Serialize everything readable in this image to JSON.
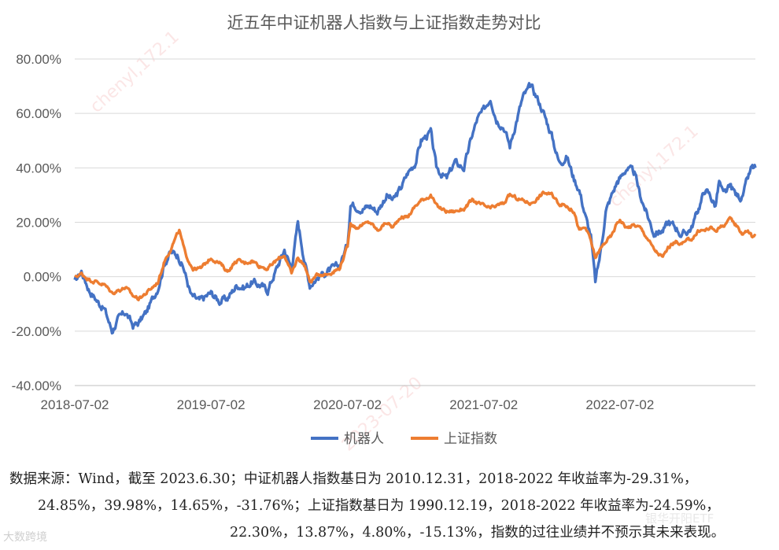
{
  "chart_data": {
    "type": "line",
    "title": "近五年中证机器人指数与上证指数走势对比",
    "xlabel": "",
    "ylabel": "",
    "x_ticks": [
      "2018-07-02",
      "2019-07-02",
      "2020-07-02",
      "2021-07-02",
      "2022-07-02"
    ],
    "x_range": [
      "2018-07-02",
      "2023-06-30"
    ],
    "y_ticks": [
      "80.00%",
      "60.00%",
      "40.00%",
      "20.00%",
      "0.00%",
      "-20.00%",
      "-40.00%"
    ],
    "ylim": [
      -40,
      80
    ],
    "grid": "horizontal",
    "legend_position": "bottom",
    "series": [
      {
        "name": "机器人",
        "color": "#4472C4",
        "points": [
          [
            "2018-07-02",
            -2
          ],
          [
            "2018-07-20",
            2
          ],
          [
            "2018-08-10",
            -5
          ],
          [
            "2018-09-01",
            -9
          ],
          [
            "2018-09-20",
            -12
          ],
          [
            "2018-10-10",
            -20
          ],
          [
            "2018-10-25",
            -16
          ],
          [
            "2018-11-15",
            -13
          ],
          [
            "2018-12-05",
            -18
          ],
          [
            "2018-12-20",
            -17
          ],
          [
            "2019-01-10",
            -13
          ],
          [
            "2019-02-10",
            -4
          ],
          [
            "2019-02-28",
            5
          ],
          [
            "2019-03-15",
            9
          ],
          [
            "2019-04-05",
            8
          ],
          [
            "2019-04-20",
            3
          ],
          [
            "2019-05-10",
            -7
          ],
          [
            "2019-06-01",
            -9
          ],
          [
            "2019-07-02",
            -6
          ],
          [
            "2019-07-25",
            -9
          ],
          [
            "2019-08-15",
            -8
          ],
          [
            "2019-09-10",
            -3
          ],
          [
            "2019-09-30",
            -4
          ],
          [
            "2019-10-20",
            -2
          ],
          [
            "2019-11-10",
            -3
          ],
          [
            "2019-12-01",
            -5
          ],
          [
            "2019-12-25",
            3
          ],
          [
            "2020-01-15",
            10
          ],
          [
            "2020-02-03",
            3
          ],
          [
            "2020-02-20",
            20
          ],
          [
            "2020-03-10",
            5
          ],
          [
            "2020-03-23",
            -3
          ],
          [
            "2020-04-15",
            0
          ],
          [
            "2020-05-10",
            2
          ],
          [
            "2020-06-10",
            4
          ],
          [
            "2020-07-02",
            12
          ],
          [
            "2020-07-10",
            27
          ],
          [
            "2020-07-25",
            26
          ],
          [
            "2020-08-10",
            25
          ],
          [
            "2020-09-01",
            26
          ],
          [
            "2020-09-20",
            24
          ],
          [
            "2020-10-15",
            30
          ],
          [
            "2020-11-01",
            28
          ],
          [
            "2020-11-20",
            32
          ],
          [
            "2020-12-10",
            38
          ],
          [
            "2020-12-31",
            42
          ],
          [
            "2021-01-15",
            50
          ],
          [
            "2021-02-10",
            53
          ],
          [
            "2021-02-25",
            40
          ],
          [
            "2021-03-10",
            38
          ],
          [
            "2021-03-25",
            36
          ],
          [
            "2021-04-15",
            42
          ],
          [
            "2021-05-10",
            40
          ],
          [
            "2021-06-01",
            52
          ],
          [
            "2021-06-15",
            58
          ],
          [
            "2021-07-02",
            61
          ],
          [
            "2021-07-20",
            66
          ],
          [
            "2021-08-05",
            58
          ],
          [
            "2021-08-25",
            55
          ],
          [
            "2021-09-10",
            48
          ],
          [
            "2021-09-25",
            56
          ],
          [
            "2021-10-15",
            66
          ],
          [
            "2021-11-05",
            70
          ],
          [
            "2021-11-25",
            65
          ],
          [
            "2021-12-10",
            60
          ],
          [
            "2021-12-31",
            52
          ],
          [
            "2022-01-20",
            42
          ],
          [
            "2022-02-10",
            44
          ],
          [
            "2022-03-01",
            36
          ],
          [
            "2022-03-15",
            32
          ],
          [
            "2022-04-01",
            22
          ],
          [
            "2022-04-15",
            15
          ],
          [
            "2022-04-27",
            -2
          ],
          [
            "2022-05-10",
            8
          ],
          [
            "2022-05-25",
            24
          ],
          [
            "2022-06-10",
            30
          ],
          [
            "2022-06-25",
            35
          ],
          [
            "2022-07-02",
            36
          ],
          [
            "2022-07-20",
            40
          ],
          [
            "2022-08-10",
            38
          ],
          [
            "2022-08-25",
            30
          ],
          [
            "2022-09-15",
            22
          ],
          [
            "2022-10-01",
            16
          ],
          [
            "2022-10-25",
            17
          ],
          [
            "2022-11-10",
            20
          ],
          [
            "2022-12-01",
            18
          ],
          [
            "2022-12-15",
            15
          ],
          [
            "2023-01-10",
            18
          ],
          [
            "2023-01-31",
            26
          ],
          [
            "2023-02-15",
            32
          ],
          [
            "2023-02-28",
            30
          ],
          [
            "2023-03-15",
            26
          ],
          [
            "2023-03-25",
            35
          ],
          [
            "2023-04-05",
            30
          ],
          [
            "2023-04-25",
            33
          ],
          [
            "2023-05-10",
            30
          ],
          [
            "2023-05-25",
            29
          ],
          [
            "2023-06-10",
            36
          ],
          [
            "2023-06-20",
            40
          ],
          [
            "2023-06-30",
            40
          ]
        ]
      },
      {
        "name": "上证指数",
        "color": "#ED7D31",
        "points": [
          [
            "2018-07-02",
            0
          ],
          [
            "2018-07-20",
            1
          ],
          [
            "2018-08-10",
            -1
          ],
          [
            "2018-09-01",
            -2
          ],
          [
            "2018-09-20",
            -3
          ],
          [
            "2018-10-10",
            -6
          ],
          [
            "2018-10-25",
            -5
          ],
          [
            "2018-11-15",
            -4
          ],
          [
            "2018-12-05",
            -7
          ],
          [
            "2018-12-20",
            -8
          ],
          [
            "2019-01-10",
            -6
          ],
          [
            "2019-02-10",
            -2
          ],
          [
            "2019-02-28",
            6
          ],
          [
            "2019-03-15",
            10
          ],
          [
            "2019-04-08",
            17
          ],
          [
            "2019-04-25",
            8
          ],
          [
            "2019-05-15",
            3
          ],
          [
            "2019-06-05",
            3
          ],
          [
            "2019-07-02",
            7
          ],
          [
            "2019-07-25",
            5
          ],
          [
            "2019-08-15",
            2
          ],
          [
            "2019-09-10",
            6
          ],
          [
            "2019-09-30",
            5
          ],
          [
            "2019-10-20",
            6
          ],
          [
            "2019-11-10",
            4
          ],
          [
            "2019-12-01",
            3
          ],
          [
            "2019-12-25",
            6
          ],
          [
            "2020-01-15",
            8
          ],
          [
            "2020-02-03",
            1
          ],
          [
            "2020-02-20",
            7
          ],
          [
            "2020-03-10",
            4
          ],
          [
            "2020-03-23",
            -2
          ],
          [
            "2020-04-15",
            1
          ],
          [
            "2020-05-10",
            1
          ],
          [
            "2020-06-10",
            3
          ],
          [
            "2020-07-02",
            11
          ],
          [
            "2020-07-10",
            20
          ],
          [
            "2020-07-25",
            18
          ],
          [
            "2020-08-10",
            19
          ],
          [
            "2020-09-01",
            20
          ],
          [
            "2020-09-20",
            17
          ],
          [
            "2020-10-15",
            20
          ],
          [
            "2020-11-01",
            18
          ],
          [
            "2020-11-20",
            22
          ],
          [
            "2020-12-10",
            22
          ],
          [
            "2020-12-31",
            26
          ],
          [
            "2021-01-15",
            28
          ],
          [
            "2021-02-10",
            30
          ],
          [
            "2021-02-25",
            26
          ],
          [
            "2021-03-10",
            25
          ],
          [
            "2021-03-25",
            24
          ],
          [
            "2021-04-15",
            24
          ],
          [
            "2021-05-10",
            25
          ],
          [
            "2021-06-01",
            28
          ],
          [
            "2021-06-15",
            27
          ],
          [
            "2021-07-02",
            26
          ],
          [
            "2021-07-20",
            25
          ],
          [
            "2021-08-05",
            26
          ],
          [
            "2021-08-25",
            27
          ],
          [
            "2021-09-10",
            30
          ],
          [
            "2021-09-25",
            29
          ],
          [
            "2021-10-15",
            28
          ],
          [
            "2021-11-05",
            27
          ],
          [
            "2021-11-25",
            29
          ],
          [
            "2021-12-10",
            31
          ],
          [
            "2021-12-31",
            30
          ],
          [
            "2022-01-20",
            27
          ],
          [
            "2022-02-10",
            26
          ],
          [
            "2022-03-01",
            24
          ],
          [
            "2022-03-15",
            17
          ],
          [
            "2022-04-01",
            18
          ],
          [
            "2022-04-15",
            13
          ],
          [
            "2022-04-27",
            7
          ],
          [
            "2022-05-10",
            10
          ],
          [
            "2022-05-25",
            13
          ],
          [
            "2022-06-10",
            15
          ],
          [
            "2022-06-25",
            20
          ],
          [
            "2022-07-02",
            21
          ],
          [
            "2022-07-20",
            18
          ],
          [
            "2022-08-10",
            19
          ],
          [
            "2022-08-25",
            18
          ],
          [
            "2022-09-15",
            14
          ],
          [
            "2022-10-01",
            10
          ],
          [
            "2022-10-25",
            7
          ],
          [
            "2022-11-10",
            11
          ],
          [
            "2022-12-01",
            13
          ],
          [
            "2022-12-15",
            12
          ],
          [
            "2023-01-10",
            14
          ],
          [
            "2023-01-31",
            17
          ],
          [
            "2023-02-15",
            17
          ],
          [
            "2023-02-28",
            18
          ],
          [
            "2023-03-15",
            17
          ],
          [
            "2023-03-25",
            18
          ],
          [
            "2023-04-05",
            19
          ],
          [
            "2023-04-25",
            21
          ],
          [
            "2023-05-10",
            19
          ],
          [
            "2023-05-25",
            16
          ],
          [
            "2023-06-10",
            17
          ],
          [
            "2023-06-20",
            15
          ],
          [
            "2023-06-30",
            15
          ]
        ]
      }
    ]
  },
  "footnote": {
    "line1": "数据来源：Wind，截至 2023.6.30；中证机器人指数基日为 2010.12.31，2018-2022 年收益率为-29.31%，",
    "line2": "24.85%，39.98%，14.65%，-31.76%；上证指数基日为 1990.12.19，2018-2022 年收益率为-24.59%，",
    "line3": "22.30%，13.87%，4.80%，-15.13%，指数的过往业绩并不预示其未来表现。"
  },
  "watermark": {
    "user_text": "chenyl,172.1",
    "user_text_2": "chenyl,172.1",
    "date_text": "2023-07-20"
  },
  "branding": {
    "left_source": "大数跨境",
    "right_account": "银华开阳ETF"
  }
}
